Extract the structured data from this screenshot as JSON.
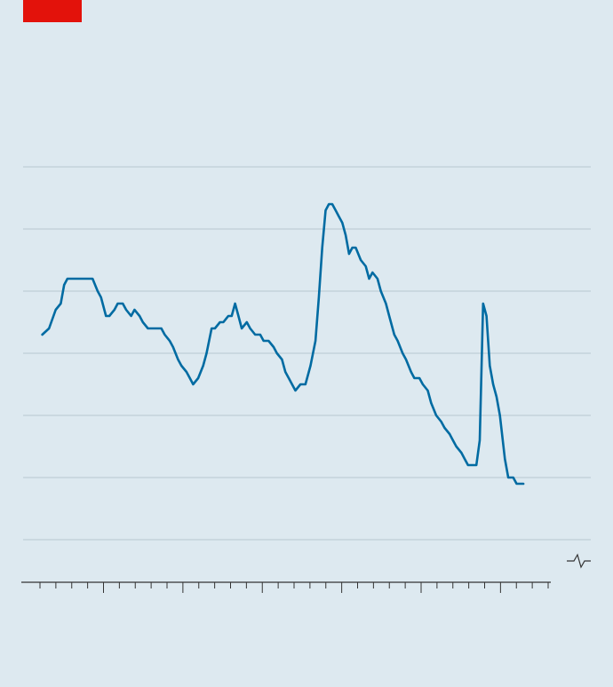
{
  "colors": {
    "background": "#dde9f0",
    "brand_tag": "#e3120b",
    "line": "#006ba2",
    "grid": "#b7c6cf",
    "axis": "#333333"
  },
  "chart_data": {
    "type": "line",
    "title": "",
    "xlabel": "",
    "ylabel": "",
    "x_ticks": 33,
    "y_gridlines": 7,
    "axis_break_marker": true,
    "xlim": [
      0,
      32.6
    ],
    "ylim": [
      0,
      6
    ],
    "series": [
      {
        "values": [
          [
            1.2,
            3.3
          ],
          [
            1.6,
            3.4
          ],
          [
            2.0,
            3.7
          ],
          [
            2.3,
            3.8
          ],
          [
            2.5,
            4.1
          ],
          [
            2.7,
            4.2
          ],
          [
            3.0,
            4.2
          ],
          [
            3.2,
            4.2
          ],
          [
            3.5,
            4.2
          ],
          [
            3.7,
            4.2
          ],
          [
            4.0,
            4.2
          ],
          [
            4.2,
            4.2
          ],
          [
            4.5,
            4.0
          ],
          [
            4.7,
            3.9
          ],
          [
            5.0,
            3.6
          ],
          [
            5.2,
            3.6
          ],
          [
            5.5,
            3.7
          ],
          [
            5.7,
            3.8
          ],
          [
            6.0,
            3.8
          ],
          [
            6.2,
            3.7
          ],
          [
            6.5,
            3.6
          ],
          [
            6.7,
            3.7
          ],
          [
            7.0,
            3.6
          ],
          [
            7.2,
            3.5
          ],
          [
            7.5,
            3.4
          ],
          [
            7.7,
            3.4
          ],
          [
            8.0,
            3.4
          ],
          [
            8.3,
            3.4
          ],
          [
            8.5,
            3.3
          ],
          [
            8.8,
            3.2
          ],
          [
            9.0,
            3.1
          ],
          [
            9.3,
            2.9
          ],
          [
            9.5,
            2.8
          ],
          [
            9.8,
            2.7
          ],
          [
            10.0,
            2.6
          ],
          [
            10.2,
            2.5
          ],
          [
            10.5,
            2.6
          ],
          [
            10.8,
            2.8
          ],
          [
            11.0,
            3.0
          ],
          [
            11.3,
            3.4
          ],
          [
            11.5,
            3.4
          ],
          [
            11.8,
            3.5
          ],
          [
            12.0,
            3.5
          ],
          [
            12.3,
            3.6
          ],
          [
            12.5,
            3.6
          ],
          [
            12.7,
            3.8
          ],
          [
            12.9,
            3.6
          ],
          [
            13.1,
            3.4
          ],
          [
            13.4,
            3.5
          ],
          [
            13.6,
            3.4
          ],
          [
            13.9,
            3.3
          ],
          [
            14.2,
            3.3
          ],
          [
            14.4,
            3.2
          ],
          [
            14.7,
            3.2
          ],
          [
            15.0,
            3.1
          ],
          [
            15.2,
            3.0
          ],
          [
            15.5,
            2.9
          ],
          [
            15.7,
            2.7
          ],
          [
            15.9,
            2.6
          ],
          [
            16.3,
            2.4
          ],
          [
            16.6,
            2.5
          ],
          [
            16.9,
            2.5
          ],
          [
            17.2,
            2.8
          ],
          [
            17.5,
            3.2
          ],
          [
            17.7,
            3.9
          ],
          [
            17.9,
            4.7
          ],
          [
            18.1,
            5.3
          ],
          [
            18.3,
            5.4
          ],
          [
            18.5,
            5.4
          ],
          [
            18.7,
            5.3
          ],
          [
            18.9,
            5.2
          ],
          [
            19.1,
            5.1
          ],
          [
            19.3,
            4.9
          ],
          [
            19.5,
            4.6
          ],
          [
            19.7,
            4.7
          ],
          [
            19.9,
            4.7
          ],
          [
            20.2,
            4.5
          ],
          [
            20.5,
            4.4
          ],
          [
            20.7,
            4.2
          ],
          [
            20.9,
            4.3
          ],
          [
            21.2,
            4.2
          ],
          [
            21.4,
            4.0
          ],
          [
            21.7,
            3.8
          ],
          [
            21.9,
            3.6
          ],
          [
            22.2,
            3.3
          ],
          [
            22.4,
            3.2
          ],
          [
            22.7,
            3.0
          ],
          [
            22.9,
            2.9
          ],
          [
            23.2,
            2.7
          ],
          [
            23.4,
            2.6
          ],
          [
            23.7,
            2.6
          ],
          [
            23.9,
            2.5
          ],
          [
            24.2,
            2.4
          ],
          [
            24.4,
            2.2
          ],
          [
            24.7,
            2.0
          ],
          [
            25.0,
            1.9
          ],
          [
            25.2,
            1.8
          ],
          [
            25.5,
            1.7
          ],
          [
            25.7,
            1.6
          ],
          [
            25.9,
            1.5
          ],
          [
            26.2,
            1.4
          ],
          [
            26.4,
            1.3
          ],
          [
            26.6,
            1.2
          ],
          [
            26.9,
            1.2
          ],
          [
            27.1,
            1.2
          ],
          [
            27.3,
            1.6
          ],
          [
            27.5,
            3.8
          ],
          [
            27.7,
            3.6
          ],
          [
            27.9,
            2.8
          ],
          [
            28.1,
            2.5
          ],
          [
            28.3,
            2.3
          ],
          [
            28.5,
            2.0
          ],
          [
            28.8,
            1.3
          ],
          [
            29.0,
            1.0
          ],
          [
            29.3,
            1.0
          ],
          [
            29.5,
            0.9
          ],
          [
            29.7,
            0.9
          ],
          [
            29.9,
            0.9
          ]
        ]
      }
    ]
  }
}
